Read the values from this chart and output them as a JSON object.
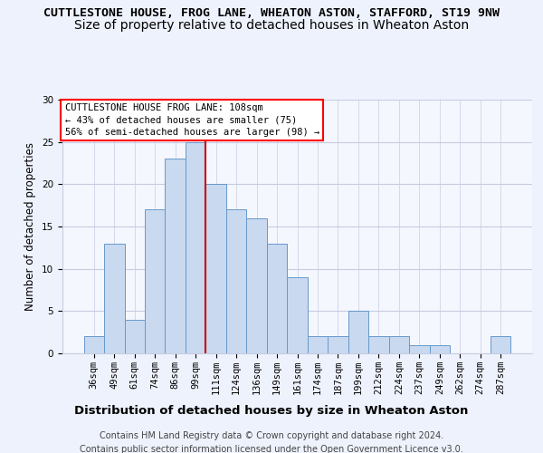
{
  "title1": "CUTTLESTONE HOUSE, FROG LANE, WHEATON ASTON, STAFFORD, ST19 9NW",
  "title2": "Size of property relative to detached houses in Wheaton Aston",
  "xlabel": "Distribution of detached houses by size in Wheaton Aston",
  "ylabel": "Number of detached properties",
  "categories": [
    "36sqm",
    "49sqm",
    "61sqm",
    "74sqm",
    "86sqm",
    "99sqm",
    "111sqm",
    "124sqm",
    "136sqm",
    "149sqm",
    "161sqm",
    "174sqm",
    "187sqm",
    "199sqm",
    "212sqm",
    "224sqm",
    "237sqm",
    "249sqm",
    "262sqm",
    "274sqm",
    "287sqm"
  ],
  "values": [
    2,
    13,
    4,
    17,
    23,
    25,
    20,
    17,
    16,
    13,
    9,
    2,
    2,
    5,
    2,
    2,
    1,
    1,
    0,
    0,
    2
  ],
  "bar_color": "#c9d9f0",
  "bar_edge_color": "#6699cc",
  "bar_width": 1.0,
  "vline_x": 5.5,
  "vline_color": "#cc0000",
  "ylim": [
    0,
    30
  ],
  "yticks": [
    0,
    5,
    10,
    15,
    20,
    25,
    30
  ],
  "annotation_box_text": "CUTTLESTONE HOUSE FROG LANE: 108sqm\n← 43% of detached houses are smaller (75)\n56% of semi-detached houses are larger (98) →",
  "footer_text": "Contains HM Land Registry data © Crown copyright and database right 2024.\nContains public sector information licensed under the Open Government Licence v3.0.",
  "background_color": "#eef2fc",
  "plot_background_color": "#f5f7fe",
  "grid_color": "#c8cce0",
  "title1_fontsize": 9.5,
  "title2_fontsize": 10,
  "xlabel_fontsize": 9.5,
  "ylabel_fontsize": 8.5,
  "tick_fontsize": 7.5,
  "footer_fontsize": 7,
  "annotation_fontsize": 7.5
}
